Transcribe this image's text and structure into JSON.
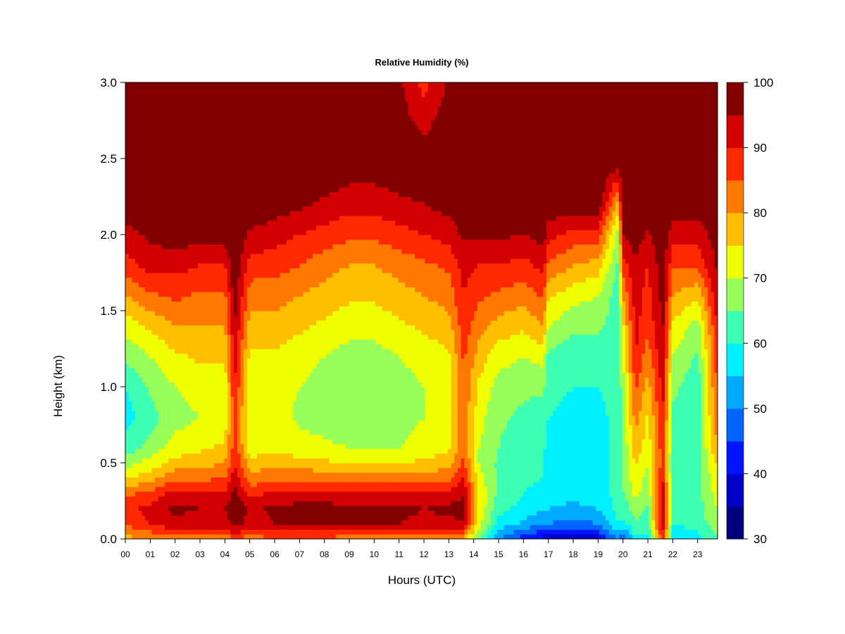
{
  "chart_data": {
    "type": "heatmap",
    "title": "Relative Humidity (%)",
    "xlabel": "Hours (UTC)",
    "ylabel": "Height (km)",
    "xlim": [
      0,
      23.8
    ],
    "ylim": [
      0,
      3.0
    ],
    "x_ticks": [
      "00",
      "01",
      "02",
      "03",
      "04",
      "05",
      "06",
      "07",
      "08",
      "09",
      "10",
      "11",
      "12",
      "13",
      "14",
      "15",
      "16",
      "17",
      "18",
      "19",
      "20",
      "21",
      "22",
      "23"
    ],
    "y_ticks": [
      "0.0",
      "0.5",
      "1.0",
      "1.5",
      "2.0",
      "2.5",
      "3.0"
    ],
    "colorbar": {
      "levels": [
        30,
        35,
        40,
        45,
        50,
        55,
        60,
        65,
        70,
        75,
        80,
        85,
        90,
        95,
        100
      ],
      "tick_labels": [
        "30",
        "40",
        "50",
        "60",
        "70",
        "80",
        "90",
        "100"
      ],
      "colors": [
        "#00007F",
        "#0000C8",
        "#0014FF",
        "#0064FF",
        "#00AAFF",
        "#00F0FF",
        "#3CFFB4",
        "#96FF5A",
        "#F0FF00",
        "#FFBE00",
        "#FF7800",
        "#FF2800",
        "#D20000",
        "#800000"
      ]
    },
    "profiles_hours": [
      0,
      1,
      2,
      3,
      4,
      4.4,
      5,
      6,
      7,
      8,
      9,
      10,
      11,
      12,
      13,
      13.6,
      14.2,
      15,
      16,
      16.8,
      17,
      18,
      19,
      19.8,
      20,
      20.5,
      21,
      21.6,
      22,
      23,
      23.8
    ],
    "profiles_height_km": [
      0,
      0.05,
      0.1,
      0.2,
      0.3,
      0.4,
      0.5,
      0.6,
      0.8,
      1.0,
      1.2,
      1.4,
      1.6,
      1.8,
      2.0,
      2.2,
      2.5,
      3.0
    ],
    "profiles_rh": [
      [
        78,
        82,
        86,
        88,
        84,
        75,
        68,
        62,
        58,
        60,
        66,
        72,
        80,
        88,
        93,
        99,
        100,
        100
      ],
      [
        80,
        85,
        90,
        92,
        86,
        78,
        72,
        67,
        63,
        66,
        70,
        76,
        84,
        92,
        96,
        100,
        100,
        100
      ],
      [
        82,
        88,
        94,
        96,
        92,
        84,
        77,
        72,
        68,
        70,
        74,
        80,
        86,
        92,
        98,
        100,
        100,
        100
      ],
      [
        82,
        88,
        93,
        95,
        90,
        84,
        78,
        74,
        70,
        72,
        76,
        80,
        84,
        90,
        97,
        100,
        100,
        100
      ],
      [
        82,
        88,
        93,
        95,
        90,
        85,
        80,
        76,
        72,
        72,
        76,
        80,
        84,
        90,
        98,
        100,
        100,
        100
      ],
      [
        84,
        92,
        97,
        99,
        97,
        93,
        90,
        88,
        88,
        90,
        92,
        95,
        98,
        99,
        100,
        100,
        100,
        100
      ],
      [
        82,
        88,
        93,
        94,
        88,
        82,
        77,
        72,
        70,
        72,
        74,
        78,
        82,
        88,
        94,
        100,
        100,
        100
      ],
      [
        84,
        90,
        95,
        96,
        91,
        84,
        78,
        74,
        72,
        72,
        74,
        78,
        82,
        87,
        92,
        98,
        100,
        100
      ],
      [
        84,
        90,
        96,
        97,
        92,
        84,
        77,
        72,
        69,
        70,
        72,
        76,
        80,
        85,
        90,
        96,
        100,
        100
      ],
      [
        84,
        90,
        96,
        97,
        92,
        84,
        76,
        71,
        68,
        68,
        70,
        74,
        78,
        82,
        88,
        94,
        100,
        100
      ],
      [
        82,
        88,
        95,
        96,
        91,
        82,
        75,
        70,
        67,
        66,
        68,
        72,
        76,
        80,
        86,
        92,
        99,
        100
      ],
      [
        82,
        88,
        95,
        96,
        91,
        82,
        75,
        70,
        66,
        66,
        68,
        72,
        76,
        80,
        86,
        92,
        99,
        100
      ],
      [
        82,
        88,
        95,
        96,
        91,
        82,
        75,
        70,
        68,
        68,
        70,
        74,
        78,
        82,
        88,
        94,
        99,
        96
      ],
      [
        80,
        86,
        94,
        95,
        90,
        82,
        76,
        72,
        70,
        70,
        72,
        76,
        80,
        84,
        90,
        95,
        98,
        88
      ],
      [
        80,
        86,
        94,
        96,
        92,
        84,
        78,
        74,
        72,
        72,
        74,
        78,
        82,
        86,
        92,
        97,
        100,
        96
      ],
      [
        78,
        86,
        94,
        97,
        95,
        90,
        86,
        84,
        84,
        84,
        86,
        88,
        90,
        92,
        96,
        100,
        100,
        100
      ],
      [
        64,
        68,
        72,
        74,
        74,
        72,
        70,
        70,
        72,
        74,
        78,
        82,
        86,
        90,
        96,
        100,
        100,
        100
      ],
      [
        50,
        54,
        58,
        62,
        64,
        64,
        64,
        65,
        66,
        68,
        72,
        78,
        84,
        90,
        96,
        100,
        100,
        100
      ],
      [
        42,
        48,
        54,
        58,
        60,
        61,
        62,
        62,
        64,
        66,
        70,
        76,
        82,
        88,
        95,
        100,
        100,
        100
      ],
      [
        38,
        44,
        50,
        56,
        58,
        60,
        60,
        61,
        62,
        66,
        72,
        80,
        86,
        92,
        97,
        100,
        100,
        100
      ],
      [
        38,
        44,
        50,
        55,
        57,
        58,
        58,
        58,
        60,
        62,
        64,
        70,
        76,
        84,
        92,
        99,
        100,
        100
      ],
      [
        36,
        42,
        48,
        54,
        56,
        57,
        57,
        57,
        58,
        60,
        62,
        66,
        72,
        80,
        88,
        98,
        100,
        100
      ],
      [
        38,
        44,
        50,
        55,
        57,
        58,
        58,
        58,
        58,
        60,
        62,
        66,
        70,
        78,
        88,
        99,
        100,
        100
      ],
      [
        50,
        55,
        60,
        62,
        62,
        62,
        62,
        62,
        62,
        62,
        62,
        62,
        62,
        64,
        68,
        78,
        100,
        100
      ],
      [
        46,
        52,
        58,
        62,
        64,
        66,
        66,
        66,
        66,
        68,
        70,
        74,
        80,
        88,
        95,
        100,
        100,
        100
      ],
      [
        58,
        62,
        64,
        68,
        72,
        74,
        76,
        78,
        82,
        86,
        90,
        92,
        92,
        94,
        98,
        100,
        100,
        100
      ],
      [
        58,
        60,
        62,
        64,
        66,
        68,
        70,
        72,
        74,
        78,
        82,
        86,
        88,
        90,
        94,
        98,
        100,
        100
      ],
      [
        84,
        92,
        96,
        96,
        94,
        90,
        88,
        88,
        90,
        92,
        94,
        96,
        97,
        98,
        99,
        100,
        100,
        100
      ],
      [
        56,
        58,
        60,
        62,
        62,
        62,
        62,
        63,
        64,
        66,
        70,
        74,
        80,
        86,
        92,
        98,
        100,
        100
      ],
      [
        58,
        60,
        62,
        63,
        63,
        63,
        63,
        63,
        62,
        62,
        64,
        68,
        76,
        86,
        92,
        98,
        100,
        100
      ],
      [
        64,
        66,
        68,
        70,
        72,
        74,
        76,
        80,
        84,
        86,
        88,
        90,
        94,
        96,
        98,
        100,
        100,
        100
      ]
    ]
  }
}
